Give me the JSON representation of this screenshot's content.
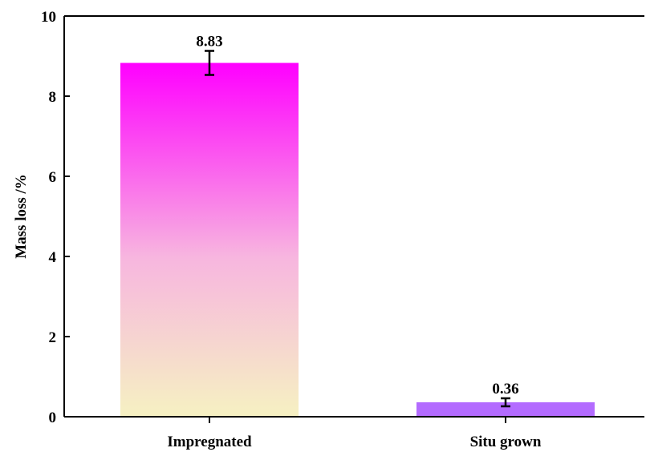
{
  "chart_data": {
    "type": "bar",
    "title": "",
    "xlabel": "",
    "ylabel": "Mass loss /%",
    "ylim": [
      0,
      10
    ],
    "yticks": [
      0,
      2,
      4,
      6,
      8,
      10
    ],
    "grid": false,
    "categories": [
      "Impregnated",
      "Situ grown"
    ],
    "values": [
      8.83,
      0.36
    ],
    "errors_low": [
      0.3,
      0.1
    ],
    "errors_high": [
      0.3,
      0.1
    ],
    "data_labels": [
      "8.83",
      "0.36"
    ],
    "colors": {
      "impregnated_top": "#ff00ff",
      "impregnated_bottom": "#f6f1c2",
      "situ_grown": "#b36bff",
      "axis": "#000000"
    }
  }
}
